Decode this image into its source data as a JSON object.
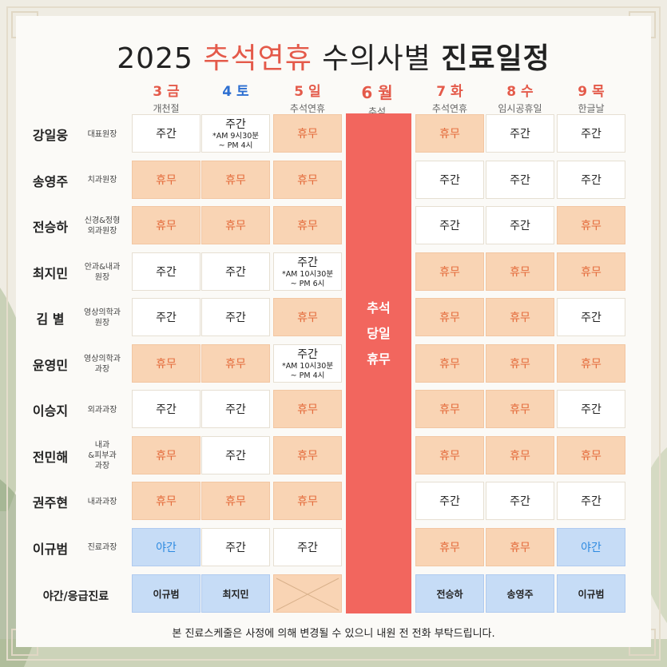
{
  "title": {
    "year": "2025",
    "holiday": "추석연휴",
    "mid": "수의사별",
    "bold": "진료일정"
  },
  "colors": {
    "red": "#e45a4a",
    "off": "#f9d4b4",
    "night": "#c6dcf6",
    "blue": "#2d6fd1"
  },
  "days": [
    {
      "d": "3 금",
      "s": "개천절",
      "color": "#e45a4a"
    },
    {
      "d": "4 토",
      "s": "",
      "color": "#2d6fd1"
    },
    {
      "d": "5 일",
      "s": "추석연휴",
      "color": "#e45a4a"
    },
    {
      "d": "6 월",
      "s": "추석",
      "color": "#e45a4a"
    },
    {
      "d": "7 화",
      "s": "추석연휴",
      "color": "#e45a4a"
    },
    {
      "d": "8 수",
      "s": "임시공휴일",
      "color": "#e45a4a"
    },
    {
      "d": "9 목",
      "s": "한글날",
      "color": "#e45a4a"
    }
  ],
  "holiday_column": {
    "line1": "추석",
    "line2": "당일",
    "line3": "휴무"
  },
  "doctors": [
    {
      "name": "강일웅",
      "role": "대표원장",
      "cells": [
        {
          "t": "work",
          "v": "주간"
        },
        {
          "t": "work",
          "v": "주간",
          "s1": "*AM 9시30분",
          "s2": "~ PM 4시"
        },
        {
          "t": "off",
          "v": "휴무"
        },
        {
          "t": "off",
          "v": "휴무"
        },
        {
          "t": "work",
          "v": "주간"
        },
        {
          "t": "work",
          "v": "주간"
        }
      ]
    },
    {
      "name": "송영주",
      "role": "치과원장",
      "cells": [
        {
          "t": "off",
          "v": "휴무"
        },
        {
          "t": "off",
          "v": "휴무"
        },
        {
          "t": "off",
          "v": "휴무"
        },
        {
          "t": "work",
          "v": "주간"
        },
        {
          "t": "work",
          "v": "주간"
        },
        {
          "t": "work",
          "v": "주간"
        }
      ]
    },
    {
      "name": "전승하",
      "role": "신경&정형\n외과원장",
      "cells": [
        {
          "t": "off",
          "v": "휴무"
        },
        {
          "t": "off",
          "v": "휴무"
        },
        {
          "t": "off",
          "v": "휴무"
        },
        {
          "t": "work",
          "v": "주간"
        },
        {
          "t": "work",
          "v": "주간"
        },
        {
          "t": "off",
          "v": "휴무"
        }
      ]
    },
    {
      "name": "최지민",
      "role": "안과&내과\n원장",
      "cells": [
        {
          "t": "work",
          "v": "주간"
        },
        {
          "t": "work",
          "v": "주간"
        },
        {
          "t": "work",
          "v": "주간",
          "s1": "*AM 10시30분",
          "s2": "~ PM 6시"
        },
        {
          "t": "off",
          "v": "휴무"
        },
        {
          "t": "off",
          "v": "휴무"
        },
        {
          "t": "off",
          "v": "휴무"
        }
      ]
    },
    {
      "name": "김  별",
      "role": "영상의학과\n원장",
      "cells": [
        {
          "t": "work",
          "v": "주간"
        },
        {
          "t": "work",
          "v": "주간"
        },
        {
          "t": "off",
          "v": "휴무"
        },
        {
          "t": "off",
          "v": "휴무"
        },
        {
          "t": "off",
          "v": "휴무"
        },
        {
          "t": "work",
          "v": "주간"
        }
      ]
    },
    {
      "name": "윤영민",
      "role": "영상의학과\n과장",
      "cells": [
        {
          "t": "off",
          "v": "휴무"
        },
        {
          "t": "off",
          "v": "휴무"
        },
        {
          "t": "work",
          "v": "주간",
          "s1": "*AM 10시30분",
          "s2": "~ PM 4시"
        },
        {
          "t": "off",
          "v": "휴무"
        },
        {
          "t": "off",
          "v": "휴무"
        },
        {
          "t": "off",
          "v": "휴무"
        }
      ]
    },
    {
      "name": "이승지",
      "role": "외과과장",
      "cells": [
        {
          "t": "work",
          "v": "주간"
        },
        {
          "t": "work",
          "v": "주간"
        },
        {
          "t": "off",
          "v": "휴무"
        },
        {
          "t": "off",
          "v": "휴무"
        },
        {
          "t": "off",
          "v": "휴무"
        },
        {
          "t": "work",
          "v": "주간"
        }
      ]
    },
    {
      "name": "전민해",
      "role": "내과\n&피부과\n과장",
      "cells": [
        {
          "t": "off",
          "v": "휴무"
        },
        {
          "t": "work",
          "v": "주간"
        },
        {
          "t": "off",
          "v": "휴무"
        },
        {
          "t": "off",
          "v": "휴무"
        },
        {
          "t": "off",
          "v": "휴무"
        },
        {
          "t": "off",
          "v": "휴무"
        }
      ]
    },
    {
      "name": "권주현",
      "role": "내과과장",
      "cells": [
        {
          "t": "off",
          "v": "휴무"
        },
        {
          "t": "off",
          "v": "휴무"
        },
        {
          "t": "off",
          "v": "휴무"
        },
        {
          "t": "work",
          "v": "주간"
        },
        {
          "t": "work",
          "v": "주간"
        },
        {
          "t": "work",
          "v": "주간"
        }
      ]
    },
    {
      "name": "이규범",
      "role": "진료과장",
      "cells": [
        {
          "t": "night",
          "v": "야간"
        },
        {
          "t": "work",
          "v": "주간"
        },
        {
          "t": "work",
          "v": "주간"
        },
        {
          "t": "off",
          "v": "휴무"
        },
        {
          "t": "off",
          "v": "휴무"
        },
        {
          "t": "night",
          "v": "야간"
        }
      ]
    }
  ],
  "emergency": {
    "label": "야간/응급진료",
    "cells": [
      {
        "t": "night",
        "v": "이규범"
      },
      {
        "t": "night",
        "v": "최지민"
      },
      {
        "t": "x",
        "v": ""
      },
      {
        "t": "night",
        "v": "전승하"
      },
      {
        "t": "night",
        "v": "송영주"
      },
      {
        "t": "night",
        "v": "이규범"
      }
    ]
  },
  "footer": "본 진료스케줄은 사정에 의해 변경될 수 있으니 내원 전 전화 부탁드립니다."
}
